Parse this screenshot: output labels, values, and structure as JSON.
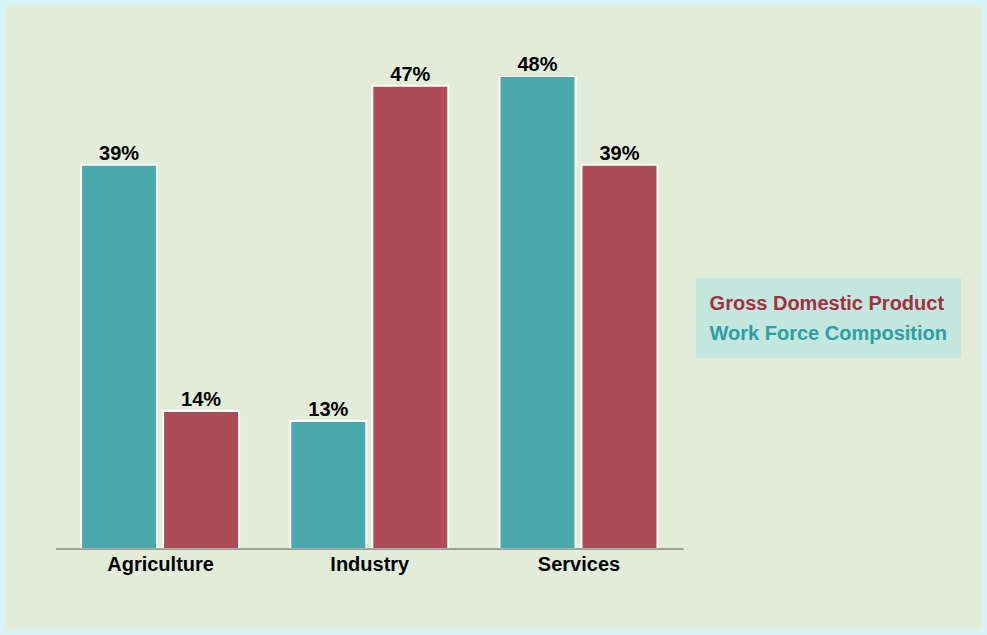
{
  "chart_data": {
    "type": "bar",
    "categories": [
      "Agriculture",
      "Industry",
      "Services"
    ],
    "series": [
      {
        "name": "Work Force Composition",
        "color": "#2f9ea3",
        "values": [
          39,
          13,
          48
        ],
        "value_labels": [
          "39%",
          "13%",
          "48%"
        ]
      },
      {
        "name": "Gross Domestic Product",
        "color": "#a3303f",
        "values": [
          14,
          47,
          39
        ],
        "value_labels": [
          "14%",
          "47%",
          "39%"
        ]
      }
    ],
    "data_labels": true,
    "tick_labels": "x",
    "legend": "right",
    "grid": false
  }
}
